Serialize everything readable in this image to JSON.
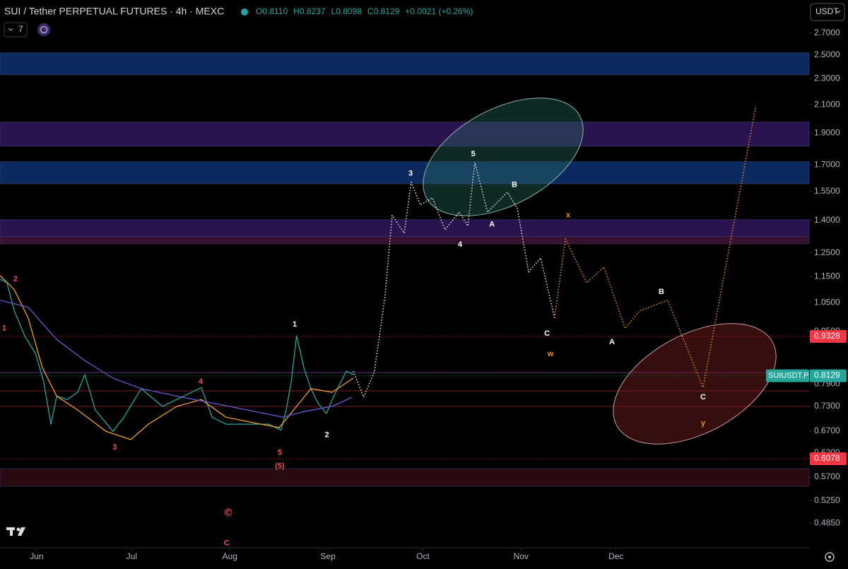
{
  "chart_data": {
    "type": "line",
    "title": "SUI / Tether PERPETUAL FUTURES · 4h · MEXC",
    "ohlc": [
      "O0.8110",
      "H0.8237",
      "L0.8098",
      "C0.8129"
    ],
    "change": "+0.0021 (+0.26%)",
    "quote": "USDT",
    "indicator_count": 7,
    "symbol": "SUIUSDT.P",
    "last_price": 0.8129,
    "price_lines": [
      0.9328,
      0.6078
    ],
    "log_scale": true,
    "xlim": [
      -11.6,
      244
    ],
    "ylim": [
      0.445,
      3.03
    ],
    "xticks": [
      {
        "value": 0,
        "label": "Jun"
      },
      {
        "value": 30,
        "label": "Jul"
      },
      {
        "value": 61,
        "label": "Aug"
      },
      {
        "value": 92,
        "label": "Sep"
      },
      {
        "value": 122,
        "label": "Oct"
      },
      {
        "value": 153,
        "label": "Nov"
      },
      {
        "value": 183,
        "label": "Dec"
      }
    ],
    "yticks": [
      {
        "value": 2.7,
        "label": "2.7000"
      },
      {
        "value": 2.5,
        "label": "2.5000"
      },
      {
        "value": 2.3,
        "label": "2.3000"
      },
      {
        "value": 2.1,
        "label": "2.1000"
      },
      {
        "value": 1.9,
        "label": "1.9000"
      },
      {
        "value": 1.7,
        "label": "1.7000"
      },
      {
        "value": 1.55,
        "label": "1.5500"
      },
      {
        "value": 1.4,
        "label": "1.4000"
      },
      {
        "value": 1.25,
        "label": "1.2500"
      },
      {
        "value": 1.15,
        "label": "1.1500"
      },
      {
        "value": 1.05,
        "label": "1.0500"
      },
      {
        "value": 0.95,
        "label": "0.9500"
      },
      {
        "value": 0.79,
        "label": "0.7900"
      },
      {
        "value": 0.73,
        "label": "0.7300"
      },
      {
        "value": 0.67,
        "label": "0.6700"
      },
      {
        "value": 0.62,
        "label": "0.6200"
      },
      {
        "value": 0.57,
        "label": "0.5700"
      },
      {
        "value": 0.525,
        "label": "0.5250"
      },
      {
        "value": 0.485,
        "label": "0.4850"
      }
    ],
    "zones": [
      {
        "from": 2.332,
        "to": 2.518,
        "color": "#0d2a5e"
      },
      {
        "from": 1.816,
        "to": 1.976,
        "color": "#2a1450"
      },
      {
        "from": 1.592,
        "to": 1.72,
        "color": "#0d2a5e"
      },
      {
        "from": 1.323,
        "to": 1.404,
        "color": "#2a1450"
      },
      {
        "from": 1.29,
        "to": 1.323,
        "color": "#3a1030"
      },
      {
        "from": 0.552,
        "to": 0.587,
        "color": "#2a0b12"
      }
    ],
    "levels": [
      {
        "value": 0.822,
        "color": "#5a3a7a"
      },
      {
        "value": 0.771,
        "color": "#7a1f2a"
      },
      {
        "value": 0.73,
        "color": "#7a1f2a"
      }
    ],
    "series": [
      {
        "color": "#26a69a",
        "style": "solid",
        "x": [
          -11.6,
          -9.4,
          -7.1,
          -3.8,
          -0.4,
          2.2,
          4.5,
          6.3,
          9.6,
          12.9,
          15.2,
          18.5,
          24.1,
          27.5,
          33.0,
          39.7,
          46.4,
          52.0,
          55.4,
          59.8,
          66.5,
          73.2,
          77.2,
          78.8,
          80.4,
          82.1,
          84.4,
          86.6,
          88.8,
          91.5,
          93.8,
          97.8,
          100
        ],
        "values": [
          1.14,
          1.126,
          1.02,
          0.935,
          0.879,
          0.796,
          0.686,
          0.757,
          0.748,
          0.767,
          0.816,
          0.721,
          0.669,
          0.703,
          0.777,
          0.73,
          0.757,
          0.78,
          0.703,
          0.686,
          0.686,
          0.686,
          0.672,
          0.721,
          0.796,
          0.935,
          0.836,
          0.777,
          0.739,
          0.712,
          0.757,
          0.826,
          0.816
        ]
      },
      {
        "color": "#f0a030",
        "style": "solid",
        "x": [
          -11.6,
          -7.1,
          -2.7,
          1.8,
          6.3,
          12.9,
          21.9,
          29.7,
          35.3,
          44.2,
          52.0,
          59.8,
          68.8,
          76.6,
          82.1,
          86.6,
          93.3,
          100
        ],
        "values": [
          1.154,
          1.099,
          0.995,
          0.836,
          0.757,
          0.721,
          0.669,
          0.65,
          0.686,
          0.73,
          0.748,
          0.703,
          0.689,
          0.678,
          0.73,
          0.777,
          0.767,
          0.806
        ]
      },
      {
        "color": "#6a5acd",
        "style": "solid",
        "x": [
          -11.6,
          -2.7,
          6.3,
          15.2,
          24.1,
          33.0,
          44.2,
          55.4,
          66.5,
          77.7,
          84.4,
          93.3,
          99.6
        ],
        "values": [
          1.059,
          1.033,
          0.923,
          0.857,
          0.806,
          0.777,
          0.757,
          0.739,
          0.721,
          0.703,
          0.717,
          0.73,
          0.754
        ]
      },
      {
        "color": "#e0e0e0",
        "style": "dotted",
        "x": [
          100,
          103.3,
          106.7,
          110.0,
          112.3,
          116.1,
          118.3,
          121.2,
          125.0,
          129.0,
          133.5,
          136.2,
          138.4,
          142.4,
          148.7,
          151.8,
          155.4,
          159.2,
          163.6
        ],
        "values": [
          0.826,
          0.754,
          0.826,
          1.071,
          1.425,
          1.339,
          1.6,
          1.478,
          1.516,
          1.355,
          1.442,
          1.373,
          1.716,
          1.442,
          1.546,
          1.461,
          1.169,
          1.228,
          0.995
        ]
      },
      {
        "color": "#e0902a",
        "style": "dotted",
        "x": [
          163.6,
          167.0,
          173.7,
          179.2,
          185.9,
          190.4,
          199.3,
          210.5,
          227.2
        ],
        "values": [
          0.995,
          1.313,
          1.126,
          1.189,
          0.959,
          1.02,
          1.059,
          0.78,
          2.092
        ]
      }
    ],
    "annotations": [
      {
        "text": "1",
        "x": -10.3,
        "y": 0.959,
        "color": "#f0505a"
      },
      {
        "text": "2",
        "x": -6.7,
        "y": 1.14,
        "color": "#f0505a"
      },
      {
        "text": "3",
        "x": 24.6,
        "y": 0.632,
        "color": "#f0505a"
      },
      {
        "text": "4",
        "x": 51.8,
        "y": 0.796,
        "color": "#f0505a"
      },
      {
        "text": "5",
        "x": 76.8,
        "y": 0.621,
        "color": "#f0505a"
      },
      {
        "text": "(5)",
        "x": 76.8,
        "y": 0.592,
        "color": "#f0505a"
      },
      {
        "text": "Ⓒ",
        "x": 60.5,
        "y": 0.502,
        "color": "#f0505a"
      },
      {
        "text": "C",
        "x": 60.0,
        "y": 0.452,
        "color": "#f0505a"
      },
      {
        "text": "1",
        "x": 81.5,
        "y": 0.973,
        "color": "#ffffff"
      },
      {
        "text": "2",
        "x": 91.7,
        "y": 0.66,
        "color": "#ffffff"
      },
      {
        "text": "3",
        "x": 118.1,
        "y": 1.649,
        "color": "#ffffff"
      },
      {
        "text": "5",
        "x": 137.9,
        "y": 1.767,
        "color": "#ffffff"
      },
      {
        "text": "4",
        "x": 133.7,
        "y": 1.287,
        "color": "#ffffff"
      },
      {
        "text": "A",
        "x": 143.8,
        "y": 1.38,
        "color": "#ffffff"
      },
      {
        "text": "B",
        "x": 150.9,
        "y": 1.585,
        "color": "#ffffff"
      },
      {
        "text": "x",
        "x": 167.9,
        "y": 1.425,
        "color": "#f0902a"
      },
      {
        "text": "C",
        "x": 161.2,
        "y": 0.942,
        "color": "#ffffff"
      },
      {
        "text": "w",
        "x": 162.3,
        "y": 0.877,
        "color": "#f0902a"
      },
      {
        "text": "A",
        "x": 181.7,
        "y": 0.914,
        "color": "#ffffff"
      },
      {
        "text": "B",
        "x": 197.3,
        "y": 1.09,
        "color": "#ffffff"
      },
      {
        "text": "C",
        "x": 210.5,
        "y": 0.754,
        "color": "#ffffff"
      },
      {
        "text": "y",
        "x": 210.5,
        "y": 0.688,
        "color": "#f0902a"
      }
    ]
  }
}
